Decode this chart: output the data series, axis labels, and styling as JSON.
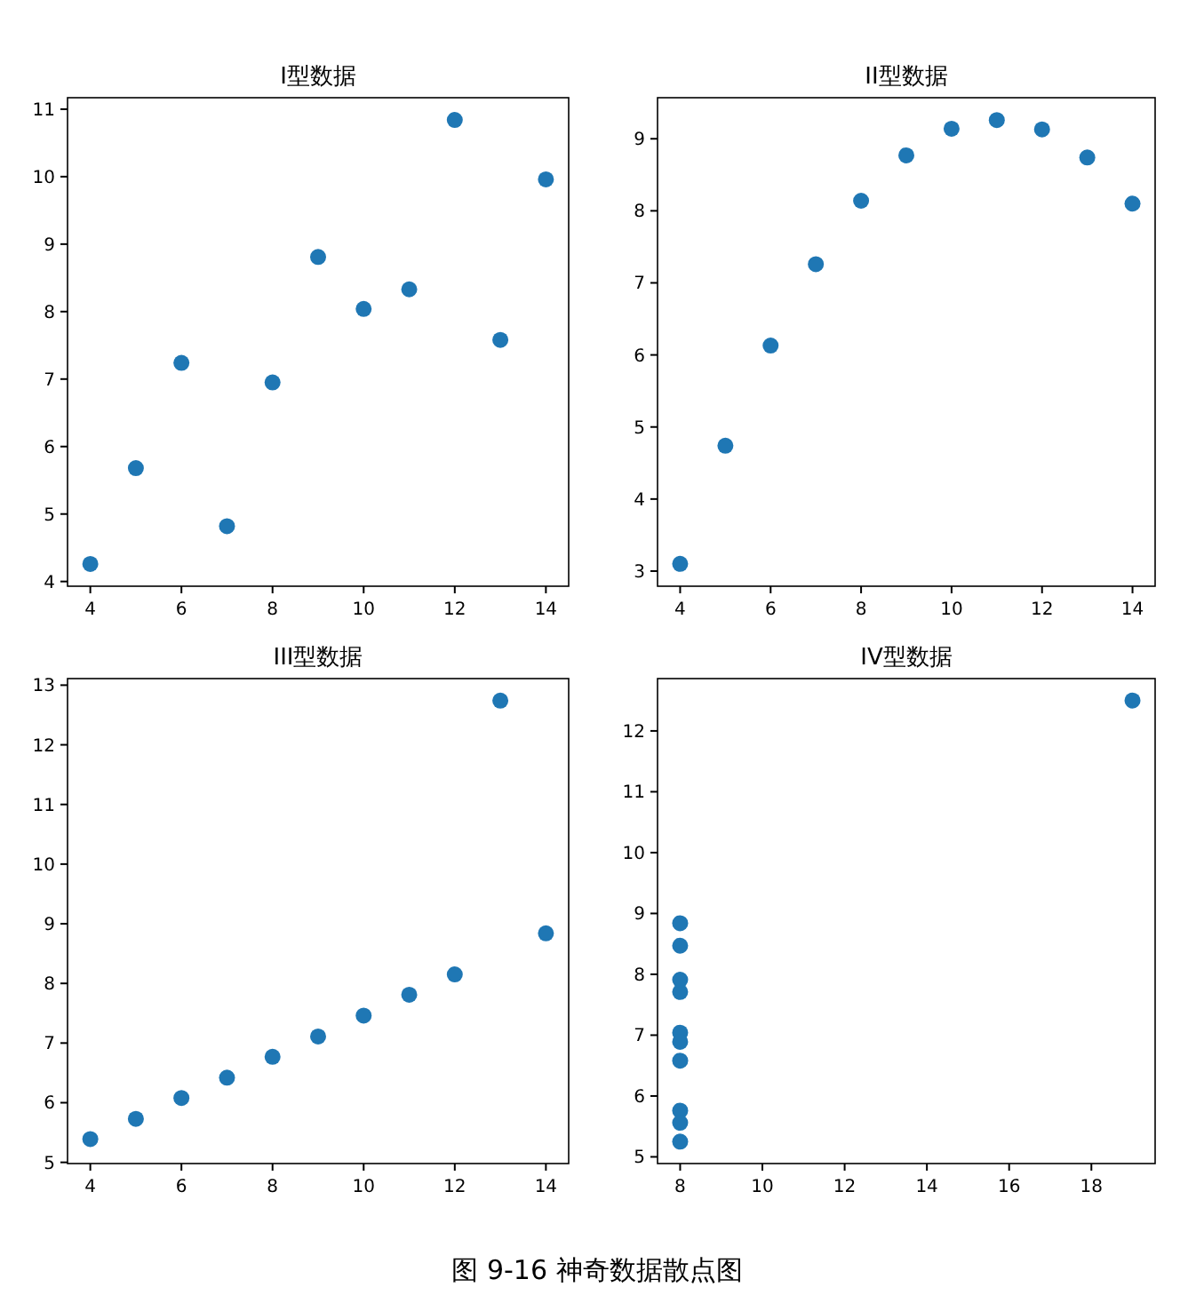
{
  "chart_data": [
    {
      "type": "scatter",
      "title": "I型数据",
      "marker": "circle",
      "grid": false,
      "x": [
        10,
        8,
        13,
        9,
        11,
        14,
        6,
        4,
        12,
        7,
        5
      ],
      "series": [
        {
          "color": "#1f77b4",
          "values": [
            8.04,
            6.95,
            7.58,
            8.81,
            8.33,
            9.96,
            7.24,
            4.26,
            10.84,
            4.82,
            5.68
          ]
        }
      ],
      "xlim": [
        3.5,
        14.5
      ],
      "xticks": [
        4,
        6,
        8,
        10,
        12,
        14
      ],
      "ylim": [
        3.93,
        11.17
      ],
      "yticks": [
        4,
        5,
        6,
        7,
        8,
        9,
        10,
        11
      ]
    },
    {
      "type": "scatter",
      "title": "II型数据",
      "marker": "circle",
      "grid": false,
      "x": [
        10,
        8,
        13,
        9,
        11,
        14,
        6,
        4,
        12,
        7,
        5
      ],
      "series": [
        {
          "color": "#1f77b4",
          "values": [
            9.14,
            8.14,
            8.74,
            8.77,
            9.26,
            8.1,
            6.13,
            3.1,
            9.13,
            7.26,
            4.74
          ]
        }
      ],
      "xlim": [
        3.5,
        14.5
      ],
      "xticks": [
        4,
        6,
        8,
        10,
        12,
        14
      ],
      "ylim": [
        2.79,
        9.57
      ],
      "yticks": [
        3,
        4,
        5,
        6,
        7,
        8,
        9
      ]
    },
    {
      "type": "scatter",
      "title": "III型数据",
      "marker": "circle",
      "grid": false,
      "x": [
        10,
        8,
        13,
        9,
        11,
        14,
        6,
        4,
        12,
        7,
        5
      ],
      "series": [
        {
          "color": "#1f77b4",
          "values": [
            7.46,
            6.77,
            12.74,
            7.11,
            7.81,
            8.84,
            6.08,
            5.39,
            8.15,
            6.42,
            5.73
          ]
        }
      ],
      "xlim": [
        3.5,
        14.5
      ],
      "xticks": [
        4,
        6,
        8,
        10,
        12,
        14
      ],
      "ylim": [
        4.98,
        13.11
      ],
      "yticks": [
        5,
        6,
        7,
        8,
        9,
        10,
        11,
        12,
        13
      ]
    },
    {
      "type": "scatter",
      "title": "IV型数据",
      "marker": "circle",
      "grid": false,
      "x": [
        8,
        8,
        8,
        8,
        8,
        8,
        8,
        19,
        8,
        8,
        8
      ],
      "series": [
        {
          "color": "#1f77b4",
          "values": [
            6.58,
            5.76,
            7.71,
            8.84,
            8.47,
            7.04,
            5.25,
            12.5,
            5.56,
            7.91,
            6.89
          ]
        }
      ],
      "xlim": [
        7.45,
        19.55
      ],
      "xticks": [
        8,
        10,
        12,
        14,
        16,
        18
      ],
      "ylim": [
        4.89,
        12.86
      ],
      "yticks": [
        5,
        6,
        7,
        8,
        9,
        10,
        11,
        12
      ],
      "annotations": [
        "图 9-16  神奇数据散点图"
      ]
    }
  ]
}
